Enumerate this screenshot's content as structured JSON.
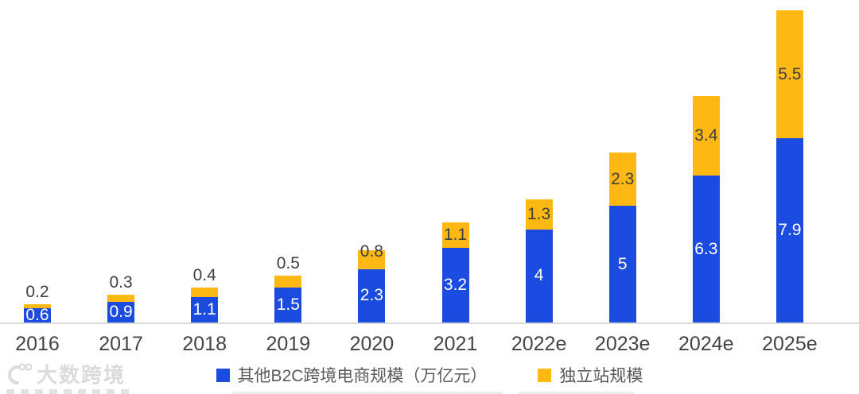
{
  "chart_data": {
    "type": "bar",
    "stacked": true,
    "title": "",
    "xlabel": "",
    "ylabel": "",
    "grid": false,
    "legend_position": "bottom",
    "ylim": [
      0,
      13.4
    ],
    "categories": [
      "2016",
      "2017",
      "2018",
      "2019",
      "2020",
      "2021",
      "2022e",
      "2023e",
      "2024e",
      "2025e"
    ],
    "series": [
      {
        "name": "其他B2C跨境电商规模（万亿元）",
        "color": "#1c4be0",
        "label_color": "#ffffff",
        "values": [
          0.6,
          0.9,
          1.1,
          1.5,
          2.3,
          3.2,
          4,
          5,
          6.3,
          7.9
        ]
      },
      {
        "name": "独立站规模",
        "color": "#fdb813",
        "label_color": "#3f3f3f",
        "values": [
          0.2,
          0.3,
          0.4,
          0.5,
          0.8,
          1.1,
          1.3,
          2.3,
          3.4,
          5.5
        ]
      }
    ],
    "value_labels_shown": true,
    "axis_line_color": "#d9d9d9",
    "tick_label_color": "#444444"
  },
  "legend": {
    "items": [
      {
        "label": "其他B2C跨境电商规模（万亿元）",
        "color": "#1c4be0"
      },
      {
        "label": "独立站规模",
        "color": "#fdb813"
      }
    ]
  },
  "watermark": {
    "brand": "大数跨境"
  }
}
